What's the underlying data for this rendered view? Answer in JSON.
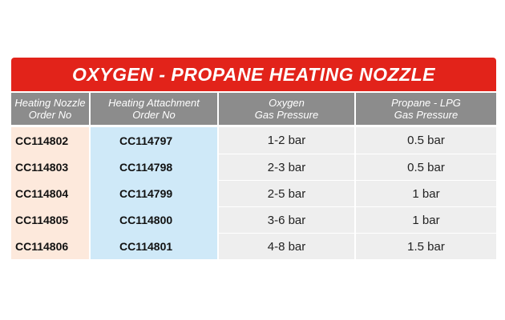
{
  "table": {
    "title": "OXYGEN - PROPANE HEATING NOZZLE",
    "headers": [
      {
        "line1": "Heating Nozzle",
        "line2": "Order No"
      },
      {
        "line1": "Heating Attachment",
        "line2": "Order No"
      },
      {
        "line1": "Oxygen",
        "line2": "Gas Pressure"
      },
      {
        "line1": "Propane - LPG",
        "line2": "Gas Pressure"
      }
    ],
    "rows": [
      {
        "nozzle": "CC114802",
        "attachment": "CC114797",
        "oxygen": "1-2 bar",
        "propane": "0.5 bar"
      },
      {
        "nozzle": "CC114803",
        "attachment": "CC114798",
        "oxygen": "2-3 bar",
        "propane": "0.5 bar"
      },
      {
        "nozzle": "CC114804",
        "attachment": "CC114799",
        "oxygen": "2-5 bar",
        "propane": "1 bar"
      },
      {
        "nozzle": "CC114805",
        "attachment": "CC114800",
        "oxygen": "3-6 bar",
        "propane": "1 bar"
      },
      {
        "nozzle": "CC114806",
        "attachment": "CC114801",
        "oxygen": "4-8 bar",
        "propane": "1.5 bar"
      }
    ],
    "colors": {
      "title_bg": "#e2231a",
      "header_bg": "#8c8c8c",
      "nozzle_bg": "#fde9dc",
      "attachment_bg": "#cfe9f8",
      "value_bg": "#eeeeee"
    }
  }
}
